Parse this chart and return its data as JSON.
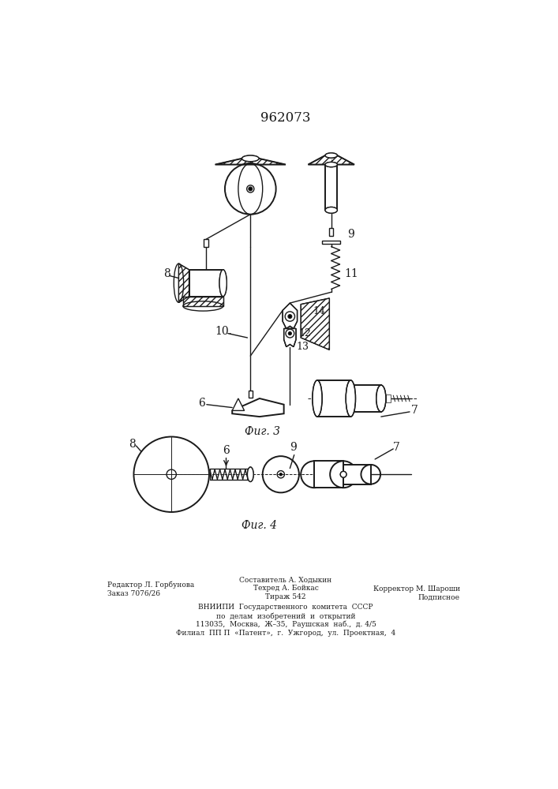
{
  "patent_number": "962073",
  "fig3_label": "Фиг. 3",
  "fig4_label": "Фиг. 4",
  "footer_left_line1": "Редактор Л. Горбунова",
  "footer_left_line2": "Заказ 7076/26",
  "footer_center_line1": "Составитель А. Ходыкин",
  "footer_center_line2": "Техред А. Бойкас",
  "footer_center_line3": "Тираж 542",
  "footer_right_line1": "Корректор М. Шароши",
  "footer_right_line2": "Подписное",
  "footer_vniiipi_1": "ВНИИПИ  Государственного  комитета  СССР",
  "footer_vniiipi_2": "по  делам  изобретений  и  открытий",
  "footer_vniiipi_3": "113035,  Москва,  Ж–35,  Раушская  наб.,  д. 4/5",
  "footer_vniiipi_4": "Филиал  ПП П  «Патент»,  г.  Ужгород,  ул.  Проектная,  4",
  "bg_color": "#ffffff",
  "line_color": "#1a1a1a"
}
